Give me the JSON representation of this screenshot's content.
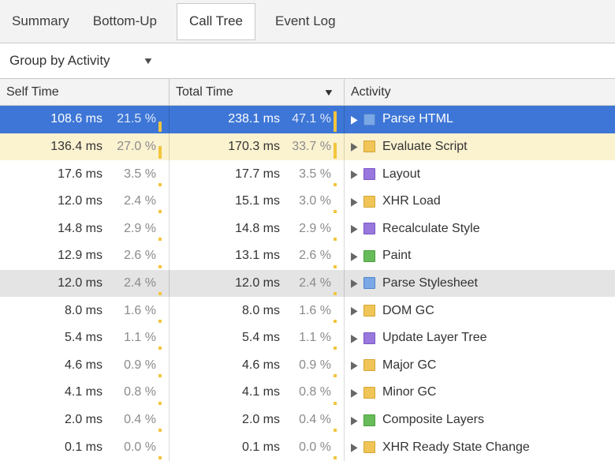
{
  "tabs": {
    "items": [
      {
        "label": "Summary"
      },
      {
        "label": "Bottom-Up"
      },
      {
        "label": "Call Tree"
      },
      {
        "label": "Event Log"
      }
    ],
    "selected": "Call Tree"
  },
  "toolbar": {
    "group_by_label": "Group by Activity"
  },
  "icons": {
    "dropdown_arrow": "▼",
    "sort_arrow": "▼",
    "disclosure_arrow": "▶"
  },
  "table": {
    "headers": {
      "self": "Self Time",
      "total": "Total Time",
      "activity": "Activity",
      "sorted_by": "Total Time",
      "sort_direction": "desc"
    },
    "rows": [
      {
        "self_ms": "108.6 ms",
        "self_pct": "21.5 %",
        "self_pct_value": 21.5,
        "total_ms": "238.1 ms",
        "total_pct": "47.1 %",
        "total_pct_value": 47.1,
        "activity": "Parse HTML",
        "category": "loading",
        "state": "selected"
      },
      {
        "self_ms": "136.4 ms",
        "self_pct": "27.0 %",
        "self_pct_value": 27.0,
        "total_ms": "170.3 ms",
        "total_pct": "33.7 %",
        "total_pct_value": 33.7,
        "activity": "Evaluate Script",
        "category": "scripting",
        "state": "highlighted"
      },
      {
        "self_ms": "17.6 ms",
        "self_pct": "3.5 %",
        "self_pct_value": 3.5,
        "total_ms": "17.7 ms",
        "total_pct": "3.5 %",
        "total_pct_value": 3.5,
        "activity": "Layout",
        "category": "rendering",
        "state": ""
      },
      {
        "self_ms": "12.0 ms",
        "self_pct": "2.4 %",
        "self_pct_value": 2.4,
        "total_ms": "15.1 ms",
        "total_pct": "3.0 %",
        "total_pct_value": 3.0,
        "activity": "XHR Load",
        "category": "scripting",
        "state": ""
      },
      {
        "self_ms": "14.8 ms",
        "self_pct": "2.9 %",
        "self_pct_value": 2.9,
        "total_ms": "14.8 ms",
        "total_pct": "2.9 %",
        "total_pct_value": 2.9,
        "activity": "Recalculate Style",
        "category": "rendering",
        "state": ""
      },
      {
        "self_ms": "12.9 ms",
        "self_pct": "2.6 %",
        "self_pct_value": 2.6,
        "total_ms": "13.1 ms",
        "total_pct": "2.6 %",
        "total_pct_value": 2.6,
        "activity": "Paint",
        "category": "painting",
        "state": ""
      },
      {
        "self_ms": "12.0 ms",
        "self_pct": "2.4 %",
        "self_pct_value": 2.4,
        "total_ms": "12.0 ms",
        "total_pct": "2.4 %",
        "total_pct_value": 2.4,
        "activity": "Parse Stylesheet",
        "category": "loading",
        "state": "hovered"
      },
      {
        "self_ms": "8.0 ms",
        "self_pct": "1.6 %",
        "self_pct_value": 1.6,
        "total_ms": "8.0 ms",
        "total_pct": "1.6 %",
        "total_pct_value": 1.6,
        "activity": "DOM GC",
        "category": "scripting",
        "state": ""
      },
      {
        "self_ms": "5.4 ms",
        "self_pct": "1.1 %",
        "self_pct_value": 1.1,
        "total_ms": "5.4 ms",
        "total_pct": "1.1 %",
        "total_pct_value": 1.1,
        "activity": "Update Layer Tree",
        "category": "rendering",
        "state": ""
      },
      {
        "self_ms": "4.6 ms",
        "self_pct": "0.9 %",
        "self_pct_value": 0.9,
        "total_ms": "4.6 ms",
        "total_pct": "0.9 %",
        "total_pct_value": 0.9,
        "activity": "Major GC",
        "category": "scripting",
        "state": ""
      },
      {
        "self_ms": "4.1 ms",
        "self_pct": "0.8 %",
        "self_pct_value": 0.8,
        "total_ms": "4.1 ms",
        "total_pct": "0.8 %",
        "total_pct_value": 0.8,
        "activity": "Minor GC",
        "category": "scripting",
        "state": ""
      },
      {
        "self_ms": "2.0 ms",
        "self_pct": "0.4 %",
        "self_pct_value": 0.4,
        "total_ms": "2.0 ms",
        "total_pct": "0.4 %",
        "total_pct_value": 0.4,
        "activity": "Composite Layers",
        "category": "painting",
        "state": ""
      },
      {
        "self_ms": "0.1 ms",
        "self_pct": "0.0 %",
        "self_pct_value": 0.0,
        "total_ms": "0.1 ms",
        "total_pct": "0.0 %",
        "total_pct_value": 0.0,
        "activity": "XHR Ready State Change",
        "category": "scripting",
        "state": ""
      }
    ]
  },
  "colors": {
    "selection_bg": "#3d76d6",
    "highlight_bg": "#fbf2d0",
    "hover_bg": "#e4e4e4",
    "pct_bar": "#f3c53d",
    "categories": {
      "loading": {
        "fill": "#7aa7e6",
        "border": "#5083cc"
      },
      "scripting": {
        "fill": "#f0c457",
        "border": "#d2a734"
      },
      "rendering": {
        "fill": "#9878dd",
        "border": "#7a57c6"
      },
      "painting": {
        "fill": "#68bb5a",
        "border": "#48a03a"
      }
    }
  }
}
